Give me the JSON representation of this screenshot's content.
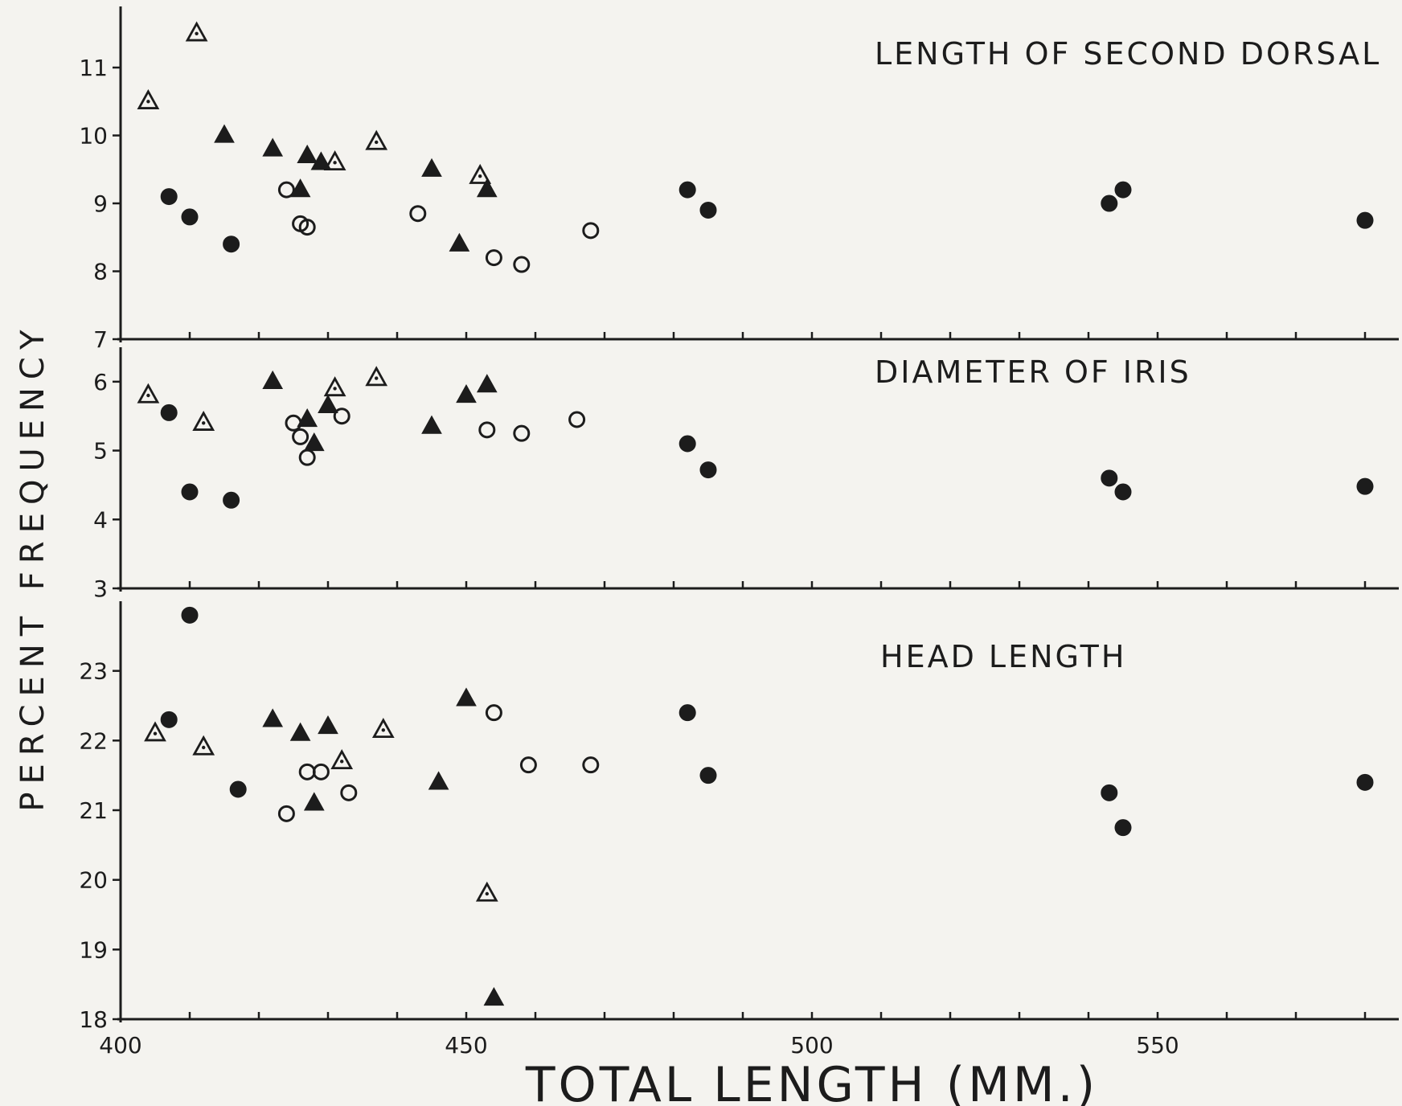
{
  "chart_data": {
    "type": "scatter",
    "xlabel": "TOTAL LENGTH (MM.)",
    "ylabel": "PERCENT FREQUENCY",
    "xlim": [
      400,
      585
    ],
    "x_ticks": [
      "400",
      "450",
      "500",
      "550"
    ],
    "marker_types": [
      "filled-circle",
      "open-circle",
      "filled-triangle",
      "open-triangle"
    ],
    "color": "#1c1c1c",
    "panels": [
      {
        "title": "LENGTH OF SECOND DORSAL",
        "ylim": [
          7,
          11.9
        ],
        "y_ticks": [
          "7",
          "8",
          "9",
          "10",
          "11"
        ],
        "series": [
          {
            "marker": "filled-circle",
            "points": [
              [
                407,
                9.1
              ],
              [
                410,
                8.8
              ],
              [
                416,
                8.4
              ],
              [
                482,
                9.2
              ],
              [
                485,
                8.9
              ],
              [
                543,
                9.0
              ],
              [
                545,
                9.2
              ],
              [
                580,
                8.75
              ]
            ]
          },
          {
            "marker": "open-circle",
            "points": [
              [
                424,
                9.2
              ],
              [
                426,
                8.7
              ],
              [
                427,
                8.65
              ],
              [
                443,
                8.85
              ],
              [
                454,
                8.2
              ],
              [
                458,
                8.1
              ],
              [
                468,
                8.6
              ]
            ]
          },
          {
            "marker": "filled-triangle",
            "points": [
              [
                415,
                10.0
              ],
              [
                422,
                9.8
              ],
              [
                427,
                9.7
              ],
              [
                426,
                9.2
              ],
              [
                429,
                9.6
              ],
              [
                445,
                9.5
              ],
              [
                449,
                8.4
              ],
              [
                453,
                9.2
              ]
            ]
          },
          {
            "marker": "open-triangle",
            "points": [
              [
                404,
                10.5
              ],
              [
                411,
                11.5
              ],
              [
                431,
                9.6
              ],
              [
                437,
                9.9
              ],
              [
                452,
                9.4
              ]
            ]
          }
        ]
      },
      {
        "title": "DIAMETER OF IRIS",
        "ylim": [
          3,
          6.5
        ],
        "y_ticks": [
          "3",
          "4",
          "5",
          "6"
        ],
        "series": [
          {
            "marker": "filled-circle",
            "points": [
              [
                407,
                5.55
              ],
              [
                410,
                4.4
              ],
              [
                416,
                4.28
              ],
              [
                482,
                5.1
              ],
              [
                485,
                4.72
              ],
              [
                543,
                4.6
              ],
              [
                545,
                4.4
              ],
              [
                580,
                4.48
              ]
            ]
          },
          {
            "marker": "open-circle",
            "points": [
              [
                425,
                5.4
              ],
              [
                426,
                5.2
              ],
              [
                427,
                4.9
              ],
              [
                432,
                5.5
              ],
              [
                453,
                5.3
              ],
              [
                458,
                5.25
              ],
              [
                466,
                5.45
              ]
            ]
          },
          {
            "marker": "filled-triangle",
            "points": [
              [
                422,
                6.0
              ],
              [
                427,
                5.45
              ],
              [
                428,
                5.1
              ],
              [
                430,
                5.65
              ],
              [
                445,
                5.35
              ],
              [
                450,
                5.8
              ],
              [
                453,
                5.95
              ]
            ]
          },
          {
            "marker": "open-triangle",
            "points": [
              [
                404,
                5.8
              ],
              [
                412,
                5.4
              ],
              [
                431,
                5.9
              ],
              [
                437,
                6.05
              ]
            ]
          }
        ]
      },
      {
        "title": "HEAD LENGTH",
        "ylim": [
          18,
          24
        ],
        "y_ticks": [
          "18",
          "19",
          "20",
          "21",
          "22",
          "23"
        ],
        "series": [
          {
            "marker": "filled-circle",
            "points": [
              [
                407,
                22.3
              ],
              [
                410,
                23.8
              ],
              [
                417,
                21.3
              ],
              [
                482,
                22.4
              ],
              [
                485,
                21.5
              ],
              [
                543,
                21.25
              ],
              [
                545,
                20.75
              ],
              [
                580,
                21.4
              ]
            ]
          },
          {
            "marker": "open-circle",
            "points": [
              [
                424,
                20.95
              ],
              [
                427,
                21.55
              ],
              [
                429,
                21.55
              ],
              [
                433,
                21.25
              ],
              [
                454,
                22.4
              ],
              [
                459,
                21.65
              ],
              [
                468,
                21.65
              ]
            ]
          },
          {
            "marker": "filled-triangle",
            "points": [
              [
                422,
                22.3
              ],
              [
                426,
                22.1
              ],
              [
                428,
                21.1
              ],
              [
                430,
                22.2
              ],
              [
                446,
                21.4
              ],
              [
                450,
                22.6
              ],
              [
                454,
                18.3
              ]
            ]
          },
          {
            "marker": "open-triangle",
            "points": [
              [
                405,
                22.1
              ],
              [
                412,
                21.9
              ],
              [
                432,
                21.7
              ],
              [
                438,
                22.15
              ],
              [
                453,
                19.8
              ]
            ]
          }
        ]
      }
    ]
  }
}
